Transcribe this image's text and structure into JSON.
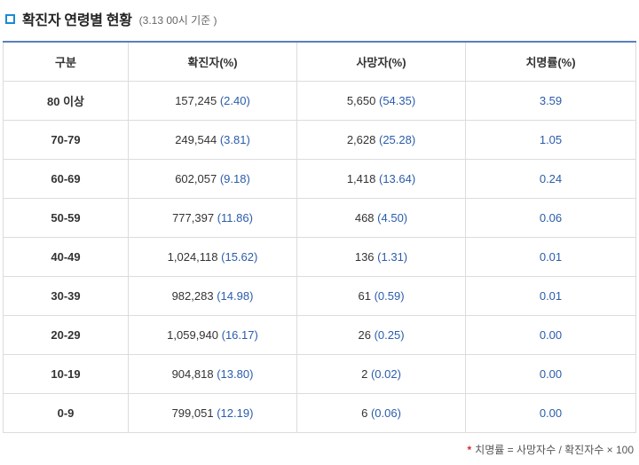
{
  "header": {
    "title": "확진자 연령별 현황",
    "basis": "(3.13 00시 기준 )"
  },
  "table": {
    "columns": [
      "구분",
      "확진자(%)",
      "사망자(%)",
      "치명률(%)"
    ],
    "rows": [
      {
        "group": "80 이상",
        "cases": "157,245",
        "cases_pct": "(2.40)",
        "deaths": "5,650",
        "deaths_pct": "(54.35)",
        "cfr": "3.59"
      },
      {
        "group": "70-79",
        "cases": "249,544",
        "cases_pct": "(3.81)",
        "deaths": "2,628",
        "deaths_pct": "(25.28)",
        "cfr": "1.05"
      },
      {
        "group": "60-69",
        "cases": "602,057",
        "cases_pct": "(9.18)",
        "deaths": "1,418",
        "deaths_pct": "(13.64)",
        "cfr": "0.24"
      },
      {
        "group": "50-59",
        "cases": "777,397",
        "cases_pct": "(11.86)",
        "deaths": "468",
        "deaths_pct": "(4.50)",
        "cfr": "0.06"
      },
      {
        "group": "40-49",
        "cases": "1,024,118",
        "cases_pct": "(15.62)",
        "deaths": "136",
        "deaths_pct": "(1.31)",
        "cfr": "0.01"
      },
      {
        "group": "30-39",
        "cases": "982,283",
        "cases_pct": "(14.98)",
        "deaths": "61",
        "deaths_pct": "(0.59)",
        "cfr": "0.01"
      },
      {
        "group": "20-29",
        "cases": "1,059,940",
        "cases_pct": "(16.17)",
        "deaths": "26",
        "deaths_pct": "(0.25)",
        "cfr": "0.00"
      },
      {
        "group": "10-19",
        "cases": "904,818",
        "cases_pct": "(13.80)",
        "deaths": "2",
        "deaths_pct": "(0.02)",
        "cfr": "0.00"
      },
      {
        "group": "0-9",
        "cases": "799,051",
        "cases_pct": "(12.19)",
        "deaths": "6",
        "deaths_pct": "(0.06)",
        "cfr": "0.00"
      }
    ]
  },
  "footnote": {
    "marker": "*",
    "text": "치명률 = 사망자수 / 확진자수 × 100"
  },
  "colors": {
    "accent_blue": "#1b89d6",
    "percent_text": "#2b5cab",
    "footnote_star": "#d9272e"
  }
}
